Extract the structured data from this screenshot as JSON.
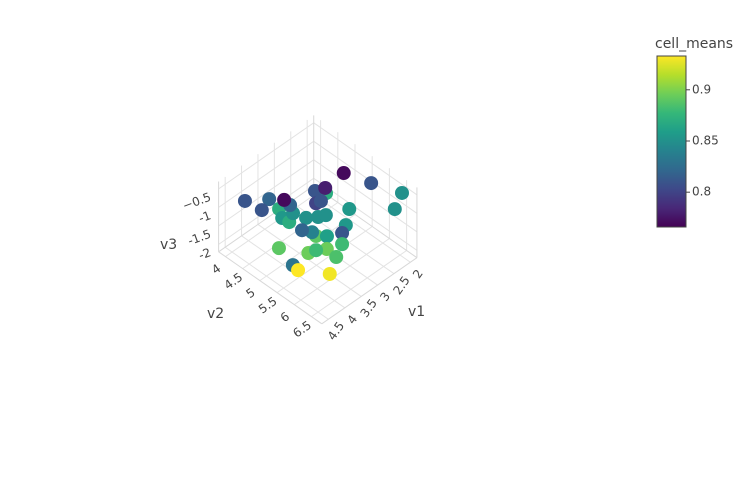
{
  "chart_data": {
    "type": "scatter3d",
    "xlabel": "v1",
    "ylabel": "v2",
    "zlabel": "v3",
    "x": [
      2.28,
      2.0,
      2.15,
      2.37,
      4.4,
      4.18,
      4.07,
      3.94,
      3.8,
      3.81,
      3.8,
      3.7,
      3.69,
      3.03,
      2.97,
      2.83,
      3.04,
      3.08,
      3.27,
      3.23,
      3.15,
      2.74,
      2.74,
      3.52,
      3.33,
      3.27,
      3.19,
      2.97,
      2.97,
      3.6,
      3.5,
      3.31,
      3.18,
      3.94,
      4.02,
      4.05,
      3.65
    ],
    "y": [
      5.13,
      5.66,
      6.7,
      6.7,
      4.28,
      4.56,
      4.67,
      4.98,
      5.02,
      4.71,
      4.79,
      4.9,
      5.0,
      5.01,
      5.25,
      5.14,
      5.05,
      5.23,
      4.98,
      5.29,
      5.44,
      5.73,
      5.63,
      5.1,
      5.21,
      5.27,
      5.51,
      5.74,
      5.74,
      5.36,
      5.49,
      5.62,
      5.77,
      4.83,
      5.31,
      5.49,
      6.03
    ],
    "z": [
      -0.7,
      -0.8,
      -0.3,
      -0.6,
      -0.7,
      -0.9,
      -0.6,
      -0.5,
      -0.7,
      -1.0,
      -1.2,
      -1.3,
      -1.0,
      -0.8,
      -0.6,
      -0.9,
      -1.1,
      -0.9,
      -1.4,
      -1.2,
      -1.1,
      -1.0,
      -1.5,
      -1.5,
      -1.6,
      -1.7,
      -1.6,
      -1.5,
      -1.8,
      -1.9,
      -1.8,
      -1.8,
      -2.0,
      -1.9,
      -2.0,
      -2.0,
      -2.0
    ],
    "color_values": [
      0.77,
      0.81,
      0.85,
      0.85,
      0.81,
      0.81,
      0.82,
      0.77,
      0.82,
      0.87,
      0.855,
      0.87,
      0.85,
      0.81,
      0.78,
      0.87,
      0.8,
      0.81,
      0.85,
      0.85,
      0.85,
      0.855,
      0.855,
      0.82,
      0.84,
      0.89,
      0.86,
      0.81,
      0.88,
      0.895,
      0.88,
      0.895,
      0.885,
      0.89,
      0.83,
      0.935,
      0.93
    ],
    "colorscale": "Viridis",
    "colorbar": {
      "title": "cell_means",
      "lim": [
        0.766,
        0.933
      ],
      "ticks": [
        0.8,
        0.85,
        0.9
      ]
    },
    "xlim": [
      1.8,
      4.7
    ],
    "ylim": [
      3.8,
      6.8
    ],
    "zlim": [
      -2.2,
      -0.3
    ],
    "xticks": [
      2,
      2.5,
      3,
      3.5,
      4,
      4.5
    ],
    "yticks": [
      4,
      4.5,
      5,
      5.5,
      6,
      6.5
    ],
    "zticks": [
      -2,
      -1.5,
      -1,
      {
        "value": -0.5,
        "label": "−0.5"
      }
    ],
    "grid": true
  }
}
